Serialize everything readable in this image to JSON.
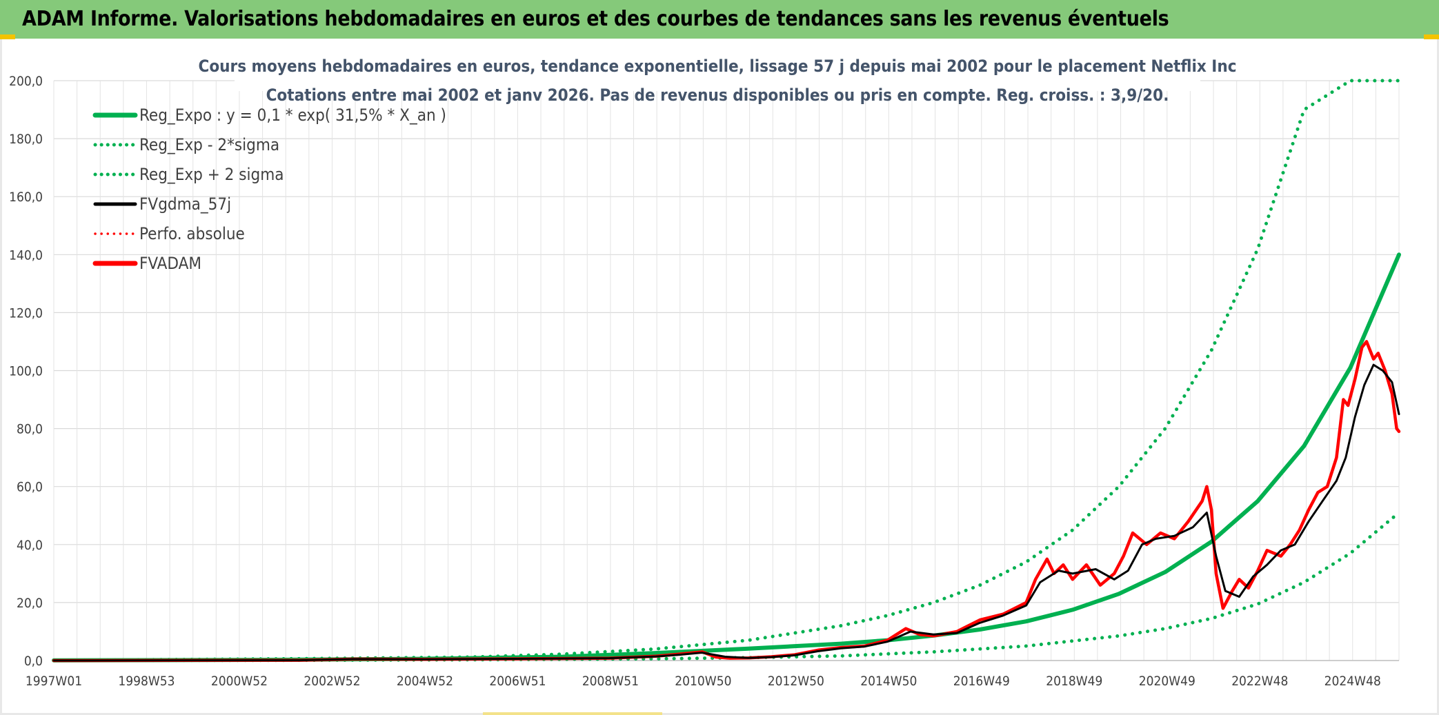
{
  "banner": {
    "title": "ADAM Informe. Valorisations hebdomadaires en euros et des courbes de tendances sans les revenus éventuels",
    "background_color": "#85c97a",
    "accent_color": "#f3c300"
  },
  "chart_data": {
    "type": "line",
    "title": "Cours moyens hebdomadaires en euros, tendance exponentielle, lissage 57 j depuis mai 2002 pour le placement Netflix Inc",
    "subtitle": "Cotations entre mai 2002 et janv 2026. Pas de revenus disponibles ou pris en compte. Reg. croiss. : 3,9/20.",
    "xlabel": "",
    "ylabel": "",
    "ylim": [
      0,
      200
    ],
    "y_ticks": [
      "0,0",
      "20,0",
      "40,0",
      "60,0",
      "80,0",
      "100,0",
      "120,0",
      "140,0",
      "160,0",
      "180,0",
      "200,0"
    ],
    "x_ticks": [
      "1997W01",
      "1998W53",
      "2000W52",
      "2002W52",
      "2004W52",
      "2006W51",
      "2008W51",
      "2010W50",
      "2012W50",
      "2014W50",
      "2016W49",
      "2018W49",
      "2020W49",
      "2022W48",
      "2024W48"
    ],
    "xlim": [
      1997.0,
      2026.05
    ],
    "grid": true,
    "legend_position": "top-left",
    "series": [
      {
        "name": "Reg_Expo : y = 0,1 * exp( 31,5% *  X_an )",
        "color": "#00b050",
        "style": "solid",
        "x": [
          1997.0,
          2002.0,
          2005.0,
          2008.0,
          2010.0,
          2012.0,
          2014.0,
          2015.0,
          2016.0,
          2017.0,
          2018.0,
          2019.0,
          2020.0,
          2021.0,
          2022.0,
          2023.0,
          2024.0,
          2025.0,
          2026.05
        ],
        "y": [
          0.05,
          0.25,
          0.6,
          1.3,
          2.6,
          4.1,
          5.8,
          7.0,
          8.6,
          10.7,
          13.5,
          17.5,
          23.0,
          30.5,
          41.0,
          55.0,
          74.0,
          101.0,
          140.0
        ]
      },
      {
        "name": "Reg_Exp - 2*sigma",
        "color": "#00b050",
        "style": "dotted",
        "x": [
          1997.0,
          2002.0,
          2006.0,
          2010.0,
          2012.0,
          2014.0,
          2016.0,
          2018.0,
          2020.0,
          2021.0,
          2022.0,
          2023.0,
          2024.0,
          2025.0,
          2026.05
        ],
        "y": [
          0.02,
          0.08,
          0.25,
          0.6,
          1.0,
          1.6,
          3.0,
          5.0,
          8.5,
          11.0,
          14.5,
          19.5,
          27.0,
          37.0,
          51.0
        ]
      },
      {
        "name": "Reg_Exp + 2 sigma",
        "color": "#00b050",
        "style": "dotted",
        "x": [
          1997.0,
          2002.0,
          2006.0,
          2008.0,
          2010.0,
          2012.0,
          2014.0,
          2015.0,
          2016.0,
          2017.0,
          2018.0,
          2019.0,
          2020.0,
          2021.0,
          2022.0,
          2023.0,
          2024.0,
          2025.0,
          2025.5,
          2026.05
        ],
        "y": [
          0.08,
          0.6,
          1.2,
          2.2,
          4.0,
          7.0,
          12.0,
          15.5,
          20.0,
          26.0,
          34.0,
          45.0,
          60.0,
          80.0,
          107.0,
          142.0,
          190.0,
          200.0,
          200.0,
          200.0
        ]
      },
      {
        "name": "FVgdma_57j",
        "color": "#000000",
        "style": "solid",
        "x": [
          1997.0,
          2002.3,
          2003.5,
          2005.0,
          2007.0,
          2009.0,
          2010.0,
          2010.5,
          2011.0,
          2011.5,
          2012.0,
          2012.5,
          2013.0,
          2013.5,
          2014.0,
          2014.5,
          2015.0,
          2015.5,
          2016.0,
          2016.5,
          2017.0,
          2017.5,
          2018.0,
          2018.3,
          2018.7,
          2019.0,
          2019.5,
          2019.9,
          2020.2,
          2020.5,
          2020.8,
          2021.2,
          2021.6,
          2021.9,
          2022.1,
          2022.3,
          2022.6,
          2022.9,
          2023.2,
          2023.5,
          2023.8,
          2024.1,
          2024.4,
          2024.7,
          2024.9,
          2025.1,
          2025.3,
          2025.5,
          2025.7,
          2025.9,
          2026.05
        ],
        "y": [
          0.0,
          0.1,
          0.5,
          0.4,
          0.6,
          0.8,
          1.4,
          2.0,
          2.7,
          1.3,
          0.9,
          1.2,
          1.8,
          3.2,
          4.2,
          4.8,
          6.5,
          10.0,
          9.0,
          9.5,
          13.0,
          15.5,
          19.0,
          27.0,
          31.0,
          30.0,
          31.5,
          28.0,
          31.0,
          40.0,
          42.0,
          43.0,
          46.0,
          51.0,
          36.0,
          24.0,
          22.0,
          29.0,
          33.0,
          38.0,
          40.0,
          48.0,
          55.0,
          62.0,
          70.0,
          84.0,
          95.0,
          102.0,
          100.0,
          96.0,
          85.0
        ]
      },
      {
        "name": "Perfo. absolue",
        "color": "#ff0000",
        "style": "dotted",
        "x": [],
        "y": []
      },
      {
        "name": "FVADAM",
        "color": "#ff0000",
        "style": "solid",
        "x": [
          1997.0,
          2002.3,
          2003.5,
          2005.0,
          2007.0,
          2009.0,
          2010.0,
          2010.5,
          2011.0,
          2011.3,
          2011.6,
          2012.0,
          2012.5,
          2013.0,
          2013.5,
          2014.0,
          2014.5,
          2015.0,
          2015.4,
          2015.7,
          2016.0,
          2016.5,
          2017.0,
          2017.5,
          2018.0,
          2018.2,
          2018.45,
          2018.6,
          2018.8,
          2019.0,
          2019.3,
          2019.6,
          2019.9,
          2020.1,
          2020.3,
          2020.6,
          2020.9,
          2021.2,
          2021.5,
          2021.8,
          2021.9,
          2022.0,
          2022.1,
          2022.25,
          2022.45,
          2022.6,
          2022.8,
          2023.0,
          2023.2,
          2023.5,
          2023.7,
          2023.9,
          2024.1,
          2024.3,
          2024.5,
          2024.7,
          2024.85,
          2024.95,
          2025.1,
          2025.25,
          2025.35,
          2025.5,
          2025.6,
          2025.75,
          2025.9,
          2026.0,
          2026.05
        ],
        "y": [
          0.0,
          0.1,
          0.5,
          0.4,
          0.6,
          0.8,
          1.5,
          2.2,
          3.0,
          1.2,
          0.8,
          0.9,
          1.3,
          2.0,
          3.6,
          4.5,
          5.0,
          7.0,
          11.0,
          9.0,
          8.5,
          10.0,
          14.0,
          16.0,
          20.0,
          28.0,
          35.0,
          30.0,
          33.0,
          28.0,
          33.0,
          26.0,
          30.0,
          36.0,
          44.0,
          40.0,
          44.0,
          42.0,
          48.0,
          55.0,
          60.0,
          52.0,
          30.0,
          18.0,
          24.0,
          28.0,
          25.0,
          31.0,
          38.0,
          36.0,
          40.0,
          45.0,
          52.0,
          58.0,
          60.0,
          70.0,
          90.0,
          88.0,
          97.0,
          108.0,
          110.0,
          104.0,
          106.0,
          100.0,
          92.0,
          80.0,
          79.0
        ]
      }
    ]
  }
}
